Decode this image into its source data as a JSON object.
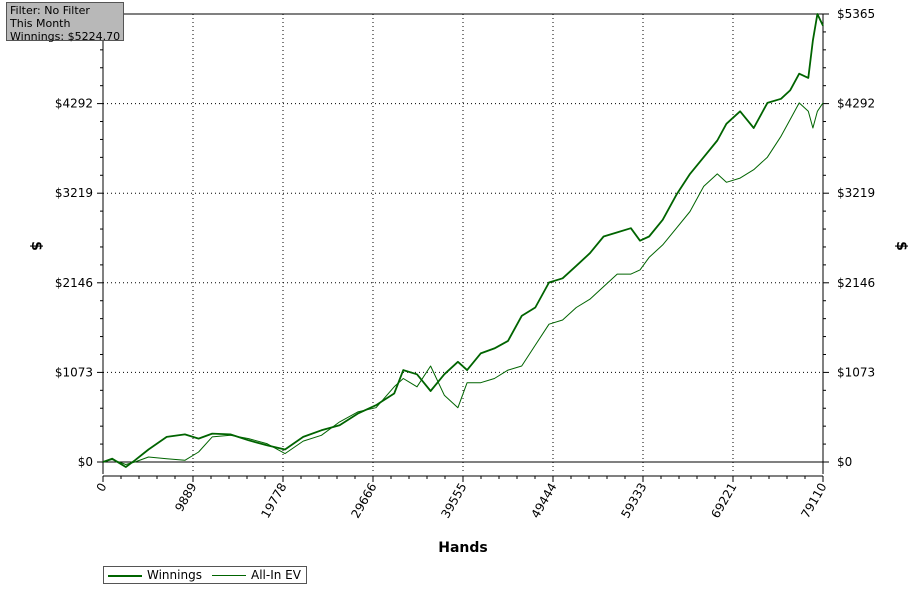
{
  "info_box": {
    "filter": "Filter: No Filter",
    "period": "This Month",
    "winnings": "Winnings: $5224.70"
  },
  "legend": {
    "winnings_label": "Winnings",
    "allin_label": "All-In EV"
  },
  "chart_data": {
    "type": "line",
    "xlabel": "Hands",
    "ylabel": "$",
    "ylabel_right": "$",
    "xlim": [
      0,
      79110
    ],
    "ylim": [
      -90,
      5365
    ],
    "x_ticks": [
      0,
      9889,
      19778,
      29666,
      39555,
      49444,
      59333,
      69221,
      79110
    ],
    "x_tick_labels": [
      "0",
      "9889",
      "19778",
      "29666",
      "39555",
      "49444",
      "59333",
      "69221",
      "79110"
    ],
    "y_ticks": [
      0,
      1073,
      2146,
      3219,
      4292,
      5365
    ],
    "y_tick_labels_left": [
      "$0",
      "$1073",
      "$2146",
      "$3219",
      "$4292",
      ""
    ],
    "y_tick_labels_right": [
      "$0",
      "$1073",
      "$2146",
      "$3219",
      "$4292",
      "$5365"
    ],
    "grid": true,
    "legend_position": "bottom-left",
    "colors": {
      "winnings": "#006400",
      "allin": "#006400"
    },
    "series": [
      {
        "name": "Winnings",
        "x": [
          0,
          1000,
          2500,
          3500,
          5000,
          7000,
          9000,
          10500,
          12000,
          14000,
          16000,
          18000,
          20000,
          22000,
          24000,
          26000,
          28000,
          30000,
          32000,
          33000,
          34500,
          36000,
          37500,
          39000,
          40000,
          41500,
          43000,
          44500,
          46000,
          47500,
          49000,
          50500,
          52000,
          53500,
          55000,
          56500,
          58000,
          59000,
          60000,
          61500,
          63000,
          64500,
          66000,
          67500,
          68500,
          70000,
          71500,
          73000,
          74500,
          75500,
          76500,
          77500,
          78000,
          78500,
          79110
        ],
        "y": [
          0,
          40,
          -60,
          20,
          150,
          300,
          330,
          280,
          340,
          330,
          260,
          200,
          150,
          300,
          380,
          440,
          580,
          680,
          820,
          1100,
          1050,
          850,
          1050,
          1200,
          1100,
          1300,
          1360,
          1450,
          1750,
          1850,
          2150,
          2200,
          2350,
          2500,
          2700,
          2750,
          2800,
          2650,
          2700,
          2900,
          3200,
          3450,
          3650,
          3850,
          4050,
          4200,
          4000,
          4300,
          4350,
          4450,
          4650,
          4600,
          5050,
          5365,
          5224
        ]
      },
      {
        "name": "All-In EV",
        "x": [
          0,
          1000,
          2500,
          3500,
          5000,
          7000,
          9000,
          10500,
          12000,
          14000,
          16000,
          18000,
          20000,
          22000,
          24000,
          26000,
          28000,
          30000,
          32000,
          33000,
          34500,
          36000,
          37500,
          39000,
          40000,
          41500,
          43000,
          44500,
          46000,
          47500,
          49000,
          50500,
          52000,
          53500,
          55000,
          56500,
          58000,
          59000,
          60000,
          61500,
          63000,
          64500,
          66000,
          67500,
          68500,
          70000,
          71500,
          73000,
          74500,
          75500,
          76500,
          77500,
          78000,
          78500,
          79110
        ],
        "y": [
          0,
          30,
          -30,
          0,
          60,
          40,
          20,
          120,
          300,
          320,
          280,
          220,
          100,
          250,
          320,
          480,
          600,
          650,
          900,
          1000,
          900,
          1150,
          800,
          650,
          950,
          950,
          1000,
          1100,
          1150,
          1400,
          1650,
          1700,
          1850,
          1950,
          2100,
          2250,
          2250,
          2300,
          2450,
          2600,
          2800,
          3000,
          3300,
          3450,
          3350,
          3400,
          3500,
          3650,
          3900,
          4100,
          4300,
          4200,
          4000,
          4200,
          4300
        ]
      }
    ]
  }
}
